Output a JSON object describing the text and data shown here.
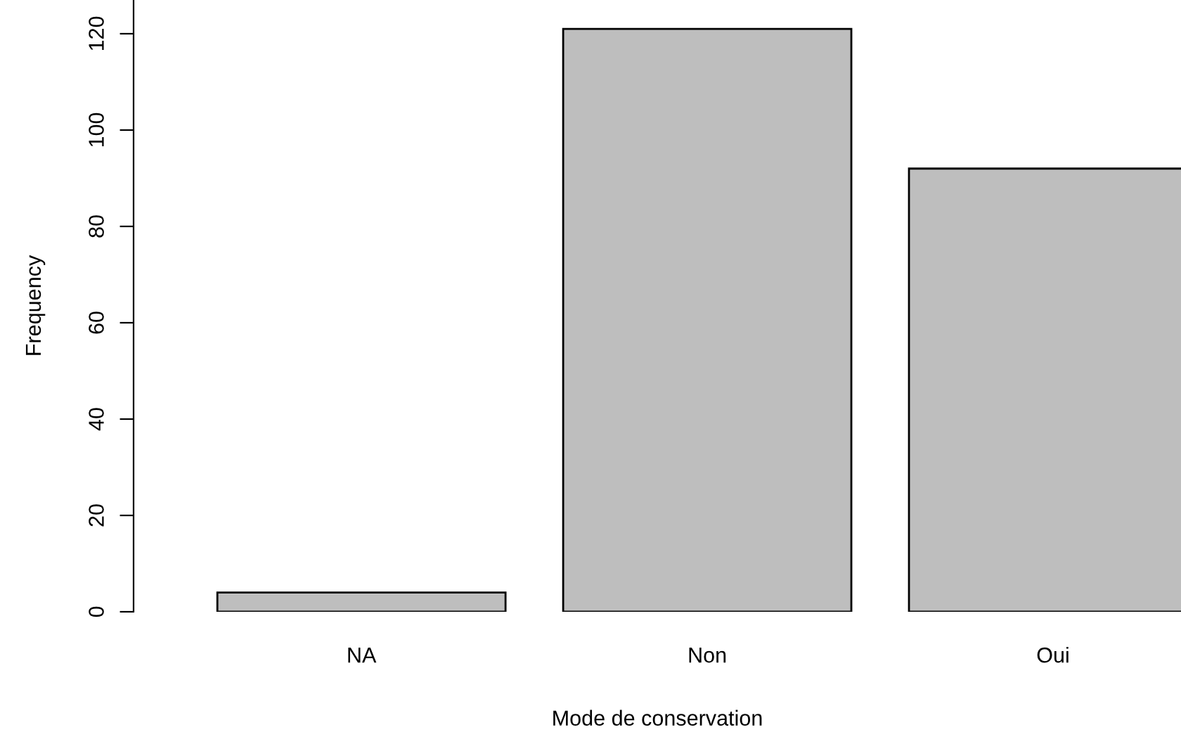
{
  "chart_data": {
    "type": "bar",
    "xlabel": "Mode de conservation",
    "ylabel": "Frequency",
    "categories": [
      "NA",
      "Non",
      "Oui"
    ],
    "values": [
      4,
      121,
      92
    ],
    "color": "#bebebe",
    "ylim": [
      0,
      127
    ],
    "yticks": [
      0,
      20,
      40,
      60,
      80,
      100,
      120
    ],
    "grid": false
  }
}
